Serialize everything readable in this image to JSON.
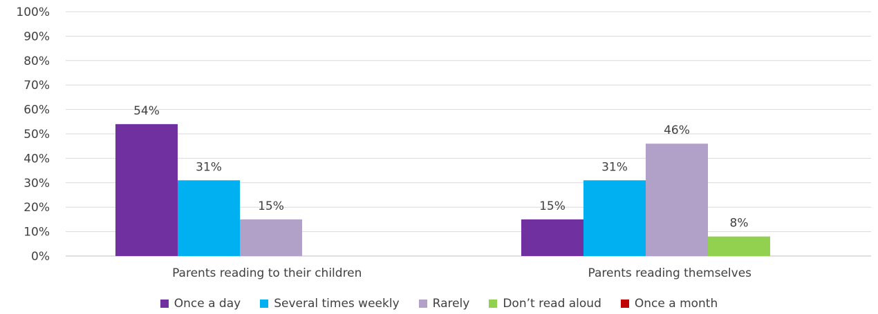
{
  "chart_data": {
    "type": "bar",
    "categories": [
      "Parents reading to their children",
      "Parents reading themselves"
    ],
    "series": [
      {
        "name": "Once a day",
        "color": "#7030a0",
        "values": [
          54,
          15
        ]
      },
      {
        "name": "Several times weekly",
        "color": "#00b0f0",
        "values": [
          31,
          31
        ]
      },
      {
        "name": "Rarely",
        "color": "#b1a0c7",
        "values": [
          15,
          46
        ]
      },
      {
        "name": "Don’t read aloud",
        "color": "#92d050",
        "values": [
          null,
          8
        ]
      },
      {
        "name": "Once a month",
        "color": "#c00000",
        "values": [
          null,
          null
        ]
      }
    ],
    "data_labels": [
      [
        "54%",
        "15%"
      ],
      [
        "31%",
        "31%"
      ],
      [
        "15%",
        "46%"
      ],
      [
        "",
        "8%"
      ],
      [
        "",
        ""
      ]
    ],
    "y_ticks": [
      "0%",
      "10%",
      "20%",
      "30%",
      "40%",
      "50%",
      "60%",
      "70%",
      "80%",
      "90%",
      "100%"
    ],
    "ylim": [
      0,
      100
    ],
    "grid": true,
    "legend_position": "bottom"
  }
}
